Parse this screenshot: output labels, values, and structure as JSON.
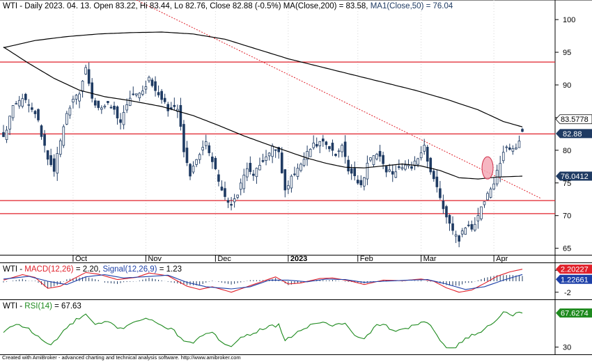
{
  "colors": {
    "up": "#ffffff",
    "down": "#1f3b63",
    "candle_outline": "#1f3b63",
    "resistance": "#e0202a",
    "trendline": "#e0202a",
    "ma200": "#000000",
    "ma50": "#000000",
    "macd": "#e0202a",
    "signal": "#1c3fa8",
    "histogram": "#1f3b63",
    "rsi": "#1e8a1e",
    "highlight_fill": "#f4a9b6",
    "highlight_stroke": "#d0304a",
    "badge_dark": "#1f3b63",
    "badge_red": "#e0202a",
    "badge_blue": "#1c3fa8",
    "badge_green": "#1e8a1e"
  },
  "header": {
    "main_prefix": "WTI - Daily 2023. 04. 13. Open 83.22, Hi 83.44, Lo 82.76, Close 82.88 (-0.5%) MA(Close,200) = 83.58,",
    "main_ma50": "MA1(Close,50) = 76.04",
    "macd_prefix": "WTI - ",
    "macd_name": "MACD(12,26)",
    "macd_value": "= 2.20,",
    "macd_signal_name": "Signal(12,26,9)",
    "macd_signal_value": "= 1.23",
    "rsi_prefix": "WTI - ",
    "rsi_name": "RSI(14)",
    "rsi_value": "= 67.63"
  },
  "badges": {
    "ma200": "83.5778",
    "close": "82.88",
    "ma50": "76.0412",
    "macd": "2.20227",
    "signal": "1.22661",
    "rsi": "67.6274"
  },
  "footer": "Created with AmiBroker - advanced charting and technical analysis software. http://www.amibroker.com",
  "chart_data": [
    {
      "type": "candlestick",
      "title": "WTI - Daily",
      "ylim": [
        64,
        103
      ],
      "y_ticks": [
        65,
        70,
        75,
        80,
        85,
        90,
        95,
        100
      ],
      "x_labels": [
        {
          "label": "Oct",
          "index": 22
        },
        {
          "label": "Nov",
          "index": 45
        },
        {
          "label": "Dec",
          "index": 67
        },
        {
          "label": "2023",
          "index": 90,
          "bold": true
        },
        {
          "label": "Feb",
          "index": 112
        },
        {
          "label": "Mar",
          "index": 132
        },
        {
          "label": "Apr",
          "index": 155
        }
      ],
      "n_bars": 165,
      "close_keys": [
        [
          0,
          82.0
        ],
        [
          3,
          86.5
        ],
        [
          6,
          88.0
        ],
        [
          10,
          86.0
        ],
        [
          12,
          82.5
        ],
        [
          14,
          79.0
        ],
        [
          16,
          77.0
        ],
        [
          20,
          86.0
        ],
        [
          24,
          89.0
        ],
        [
          26,
          93.0
        ],
        [
          28,
          88.0
        ],
        [
          30,
          86.5
        ],
        [
          34,
          87.0
        ],
        [
          37,
          84.5
        ],
        [
          40,
          88.0
        ],
        [
          43,
          88.5
        ],
        [
          46,
          91.0
        ],
        [
          48,
          89.5
        ],
        [
          50,
          88.0
        ],
        [
          52,
          86.0
        ],
        [
          55,
          86.5
        ],
        [
          57,
          80.0
        ],
        [
          59,
          76.0
        ],
        [
          62,
          79.5
        ],
        [
          64,
          81.0
        ],
        [
          66,
          78.5
        ],
        [
          68,
          75.0
        ],
        [
          70,
          72.5
        ],
        [
          72,
          72.0
        ],
        [
          74,
          73.5
        ],
        [
          77,
          77.5
        ],
        [
          79,
          76.0
        ],
        [
          82,
          78.5
        ],
        [
          85,
          80.5
        ],
        [
          87,
          79.5
        ],
        [
          89,
          73.5
        ],
        [
          91,
          76.0
        ],
        [
          93,
          77.5
        ],
        [
          95,
          78.5
        ],
        [
          97,
          80.5
        ],
        [
          99,
          81.0
        ],
        [
          101,
          81.5
        ],
        [
          103,
          80.5
        ],
        [
          105,
          79.5
        ],
        [
          107,
          80.5
        ],
        [
          109,
          77.0
        ],
        [
          111,
          76.0
        ],
        [
          113,
          74.5
        ],
        [
          115,
          78.0
        ],
        [
          117,
          79.0
        ],
        [
          119,
          79.5
        ],
        [
          121,
          77.0
        ],
        [
          123,
          76.5
        ],
        [
          125,
          77.0
        ],
        [
          127,
          77.5
        ],
        [
          129,
          77.5
        ],
        [
          131,
          79.0
        ],
        [
          133,
          80.5
        ],
        [
          134,
          78.0
        ],
        [
          136,
          76.0
        ],
        [
          138,
          73.0
        ],
        [
          140,
          69.5
        ],
        [
          142,
          67.5
        ],
        [
          144,
          66.5
        ],
        [
          146,
          68.5
        ],
        [
          148,
          68.0
        ],
        [
          150,
          70.0
        ],
        [
          152,
          72.5
        ],
        [
          154,
          74.0
        ],
        [
          156,
          76.5
        ],
        [
          158,
          80.0
        ],
        [
          160,
          80.5
        ],
        [
          162,
          80.0
        ],
        [
          163,
          81.5
        ],
        [
          164,
          82.88
        ]
      ],
      "last_bar": {
        "open": 83.22,
        "high": 83.44,
        "low": 82.76,
        "close": 82.88,
        "change_pct": -0.5
      },
      "ma200_keys": [
        [
          0,
          95.7
        ],
        [
          10,
          96.8
        ],
        [
          20,
          97.4
        ],
        [
          30,
          97.8
        ],
        [
          40,
          98.0
        ],
        [
          50,
          98.1
        ],
        [
          60,
          97.8
        ],
        [
          70,
          97.0
        ],
        [
          80,
          95.5
        ],
        [
          90,
          94.0
        ],
        [
          100,
          92.8
        ],
        [
          110,
          91.6
        ],
        [
          120,
          90.4
        ],
        [
          130,
          89.2
        ],
        [
          140,
          87.8
        ],
        [
          150,
          86.2
        ],
        [
          158,
          84.4
        ],
        [
          164,
          83.58
        ]
      ],
      "ma50_keys": [
        [
          0,
          95.8
        ],
        [
          8,
          93.3
        ],
        [
          16,
          91.0
        ],
        [
          24,
          89.2
        ],
        [
          32,
          88.2
        ],
        [
          40,
          87.6
        ],
        [
          50,
          86.7
        ],
        [
          60,
          85.3
        ],
        [
          68,
          83.8
        ],
        [
          76,
          82.2
        ],
        [
          84,
          80.8
        ],
        [
          90,
          79.8
        ],
        [
          96,
          78.8
        ],
        [
          102,
          78.0
        ],
        [
          108,
          77.4
        ],
        [
          114,
          77.3
        ],
        [
          120,
          77.6
        ],
        [
          126,
          77.9
        ],
        [
          132,
          77.6
        ],
        [
          138,
          76.9
        ],
        [
          144,
          75.8
        ],
        [
          150,
          75.6
        ],
        [
          156,
          75.9
        ],
        [
          164,
          76.04
        ]
      ],
      "horizontal_lines": [
        93.5,
        82.5,
        72.3,
        70.3
      ],
      "trendline": {
        "from": [
          42,
          103.0
        ],
        "to": [
          170,
          72.6
        ]
      },
      "highlight": {
        "index": 153,
        "value": 77.3
      }
    },
    {
      "type": "line",
      "title": "MACD(12,26)",
      "ylim": [
        -3.3,
        3.3
      ],
      "y_ticks": [
        2,
        -2
      ],
      "series": [
        {
          "name": "MACD(12,26)",
          "keys": [
            [
              0,
              0.2
            ],
            [
              6,
              1.2
            ],
            [
              10,
              0.7
            ],
            [
              14,
              -1.3
            ],
            [
              18,
              -0.9
            ],
            [
              22,
              0.4
            ],
            [
              26,
              1.6
            ],
            [
              30,
              1.3
            ],
            [
              36,
              0.3
            ],
            [
              42,
              0.7
            ],
            [
              46,
              1.5
            ],
            [
              52,
              1.0
            ],
            [
              58,
              -0.9
            ],
            [
              62,
              -1.5
            ],
            [
              66,
              -1.0
            ],
            [
              72,
              -2.0
            ],
            [
              76,
              -1.2
            ],
            [
              82,
              0.0
            ],
            [
              86,
              0.8
            ],
            [
              90,
              -0.5
            ],
            [
              94,
              -0.3
            ],
            [
              100,
              0.5
            ],
            [
              104,
              0.6
            ],
            [
              110,
              0.0
            ],
            [
              114,
              -0.6
            ],
            [
              120,
              0.2
            ],
            [
              126,
              0.1
            ],
            [
              132,
              0.4
            ],
            [
              136,
              0.0
            ],
            [
              140,
              -1.2
            ],
            [
              144,
              -2.0
            ],
            [
              148,
              -1.6
            ],
            [
              152,
              -0.4
            ],
            [
              156,
              0.9
            ],
            [
              160,
              1.7
            ],
            [
              164,
              2.2
            ]
          ]
        },
        {
          "name": "Signal(12,26,9)",
          "keys": [
            [
              0,
              0.4
            ],
            [
              8,
              0.9
            ],
            [
              14,
              0.0
            ],
            [
              20,
              -0.6
            ],
            [
              26,
              0.8
            ],
            [
              32,
              1.2
            ],
            [
              38,
              0.6
            ],
            [
              44,
              0.8
            ],
            [
              52,
              1.1
            ],
            [
              58,
              -0.2
            ],
            [
              64,
              -1.0
            ],
            [
              72,
              -1.4
            ],
            [
              78,
              -1.0
            ],
            [
              84,
              0.2
            ],
            [
              90,
              0.2
            ],
            [
              96,
              -0.1
            ],
            [
              102,
              0.4
            ],
            [
              108,
              0.3
            ],
            [
              114,
              -0.2
            ],
            [
              120,
              0.0
            ],
            [
              128,
              0.2
            ],
            [
              134,
              0.3
            ],
            [
              140,
              -0.5
            ],
            [
              146,
              -1.5
            ],
            [
              152,
              -1.0
            ],
            [
              158,
              0.2
            ],
            [
              164,
              1.23
            ]
          ]
        }
      ]
    },
    {
      "type": "line",
      "title": "RSI(14)",
      "ylim": [
        22,
        82
      ],
      "y_ticks": [
        30
      ],
      "series": [
        {
          "name": "RSI(14)",
          "keys": [
            [
              0,
              46
            ],
            [
              4,
              56
            ],
            [
              8,
              50
            ],
            [
              12,
              38
            ],
            [
              15,
              32
            ],
            [
              19,
              48
            ],
            [
              23,
              60
            ],
            [
              26,
              66
            ],
            [
              29,
              54
            ],
            [
              33,
              58
            ],
            [
              37,
              50
            ],
            [
              41,
              58
            ],
            [
              45,
              62
            ],
            [
              49,
              55
            ],
            [
              53,
              50
            ],
            [
              57,
              38
            ],
            [
              60,
              33
            ],
            [
              63,
              44
            ],
            [
              66,
              45
            ],
            [
              69,
              36
            ],
            [
              72,
              32
            ],
            [
              75,
              40
            ],
            [
              79,
              46
            ],
            [
              83,
              52
            ],
            [
              87,
              54
            ],
            [
              89,
              36
            ],
            [
              92,
              45
            ],
            [
              96,
              52
            ],
            [
              100,
              58
            ],
            [
              104,
              54
            ],
            [
              108,
              56
            ],
            [
              111,
              42
            ],
            [
              114,
              38
            ],
            [
              117,
              52
            ],
            [
              120,
              56
            ],
            [
              124,
              46
            ],
            [
              128,
              52
            ],
            [
              131,
              55
            ],
            [
              134,
              58
            ],
            [
              137,
              42
            ],
            [
              140,
              30
            ],
            [
              143,
              31
            ],
            [
              146,
              40
            ],
            [
              150,
              45
            ],
            [
              154,
              55
            ],
            [
              158,
              68
            ],
            [
              161,
              66
            ],
            [
              163,
              70
            ],
            [
              164,
              67.63
            ]
          ]
        }
      ]
    }
  ]
}
